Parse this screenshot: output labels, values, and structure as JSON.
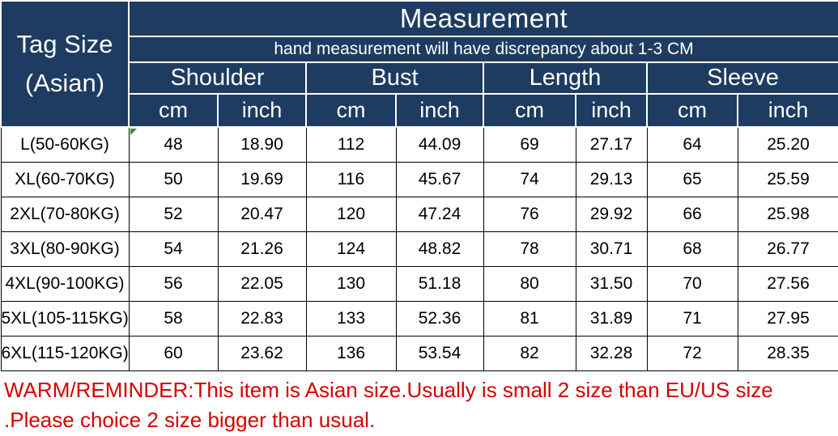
{
  "chart_data": {
    "type": "table",
    "title": "Measurement",
    "subtitle": "hand measurement will have discrepancy about 1-3 CM",
    "corner_header": {
      "line1": "Tag Size",
      "line2": "(Asian)"
    },
    "column_groups": [
      "Shoulder",
      "Bust",
      "Length",
      "Sleeve"
    ],
    "units": [
      "cm",
      "inch",
      "cm",
      "inch",
      "cm",
      "inch",
      "cm",
      "inch"
    ],
    "columns": [
      "Tag Size (Asian)",
      "Shoulder cm",
      "Shoulder inch",
      "Bust cm",
      "Bust inch",
      "Length cm",
      "Length inch",
      "Sleeve cm",
      "Sleeve inch"
    ],
    "rows": [
      {
        "size": "L(50-60KG)",
        "values": [
          "48",
          "18.90",
          "112",
          "44.09",
          "69",
          "27.17",
          "64",
          "25.20"
        ]
      },
      {
        "size": "XL(60-70KG)",
        "values": [
          "50",
          "19.69",
          "116",
          "45.67",
          "74",
          "29.13",
          "65",
          "25.59"
        ]
      },
      {
        "size": "2XL(70-80KG)",
        "values": [
          "52",
          "20.47",
          "120",
          "47.24",
          "76",
          "29.92",
          "66",
          "25.98"
        ]
      },
      {
        "size": "3XL(80-90KG)",
        "values": [
          "54",
          "21.26",
          "124",
          "48.82",
          "78",
          "30.71",
          "68",
          "26.77"
        ]
      },
      {
        "size": "4XL(90-100KG)",
        "values": [
          "56",
          "22.05",
          "130",
          "51.18",
          "80",
          "31.50",
          "70",
          "27.56"
        ]
      },
      {
        "size": "5XL(105-115KG)",
        "values": [
          "58",
          "22.83",
          "133",
          "52.36",
          "81",
          "31.89",
          "71",
          "27.95"
        ]
      },
      {
        "size": "6XL(115-120KG)",
        "values": [
          "60",
          "23.62",
          "136",
          "53.54",
          "82",
          "32.28",
          "72",
          "28.35"
        ]
      }
    ],
    "note_lines": [
      "WARM/REMINDER:This item is Asian size.Usually is small 2 size than EU/US size",
      ".Please choice 2 size bigger than usual."
    ]
  },
  "colors": {
    "header_bg": "#1e3c61",
    "header_text": "#ffffff",
    "tag_text": "#cf2127",
    "warning_text": "#d60000",
    "grid_line": "#000000",
    "marker_green": "#2f8f2f"
  }
}
